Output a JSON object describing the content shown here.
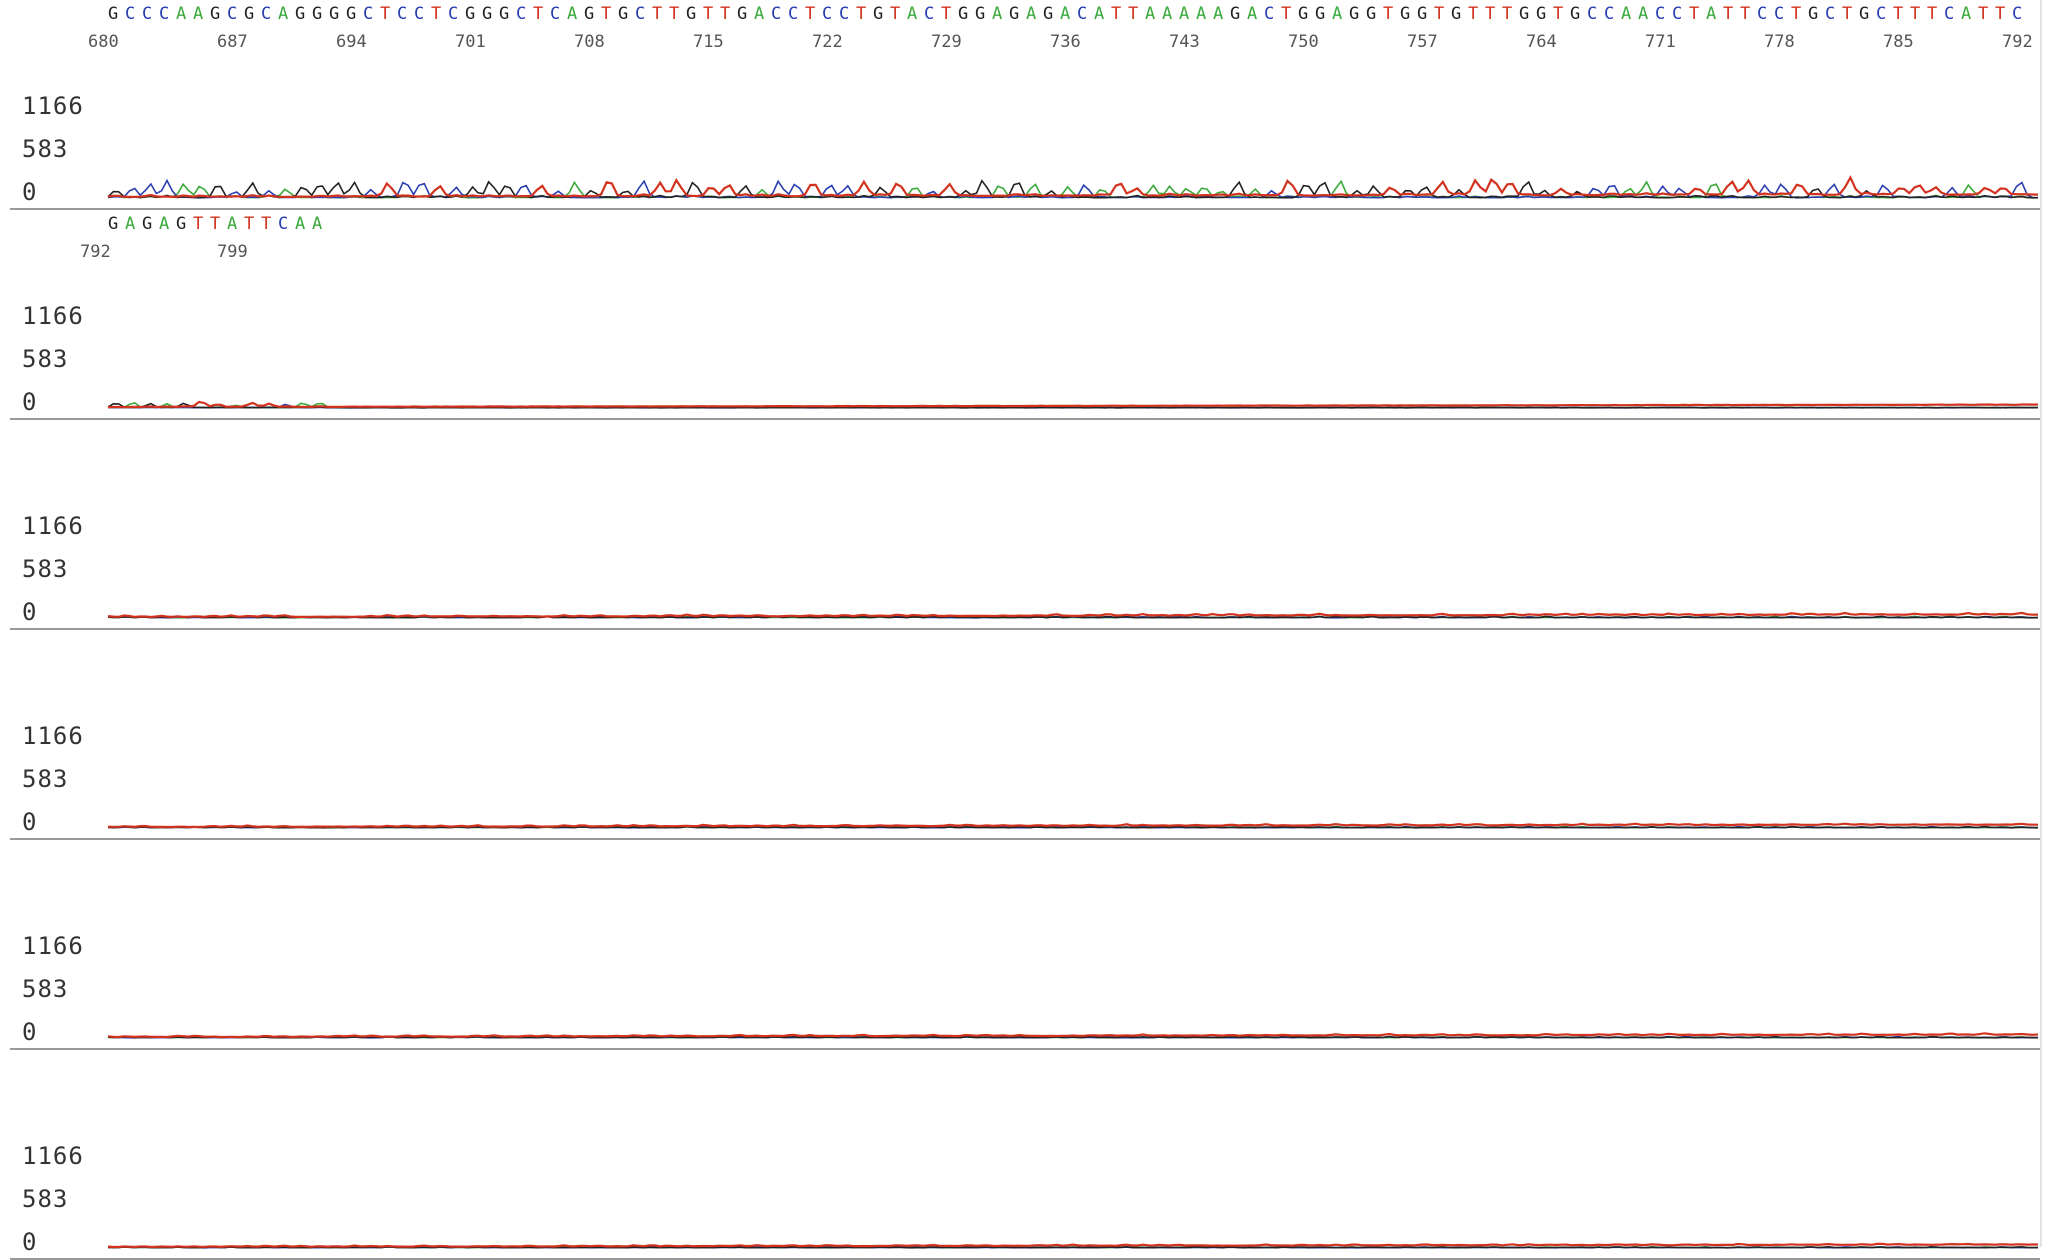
{
  "chart_data": {
    "type": "line",
    "title": "",
    "xlabel": "",
    "ylabel": "",
    "yticks": [
      "1166",
      "583",
      "0"
    ],
    "ylim": [
      0,
      1166
    ],
    "colors": {
      "A": "#3aa83a",
      "C": "#2a3fb0",
      "G": "#222222",
      "T": "#d2321e"
    },
    "first_base_number": 680,
    "panels": [
      {
        "sequence": "GCCCAAGCGCAGGGGCTCCTCGGGCTCAGTGCTTGTTGACCTCCTGTACTGGAGAGACATTAAAAAGACTGGAGGTGGTGTTTGGTGCCAACCTATTCCTGCTGCTTTCATTC",
        "position_labels": [
          "680",
          "687",
          "694",
          "701",
          "708",
          "715",
          "722",
          "729",
          "736",
          "743",
          "750",
          "757",
          "764",
          "771",
          "778",
          "785",
          "792"
        ],
        "approx_signal_max": 180
      },
      {
        "sequence": "GAGAGTTATTCAA",
        "position_labels": [
          "792",
          "799"
        ],
        "approx_signal_max": 60
      },
      {
        "sequence": "",
        "position_labels": [],
        "approx_signal_max": 30
      },
      {
        "sequence": "",
        "position_labels": [],
        "approx_signal_max": 25
      },
      {
        "sequence": "",
        "position_labels": [],
        "approx_signal_max": 25
      },
      {
        "sequence": "",
        "position_labels": [],
        "approx_signal_max": 20
      }
    ]
  }
}
